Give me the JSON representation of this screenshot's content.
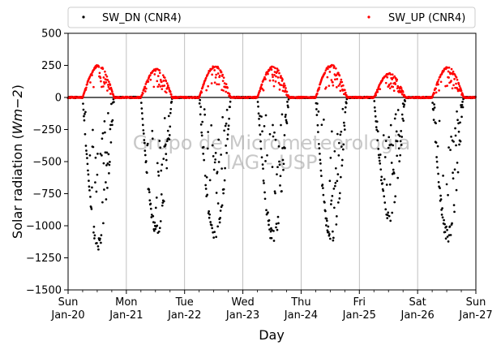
{
  "chart_data": {
    "type": "scatter",
    "title": "",
    "xlabel": "Day",
    "ylabel": "Solar radiation (Wm−2)",
    "ylabel_parts": {
      "prefix": "Solar radiation (",
      "math": "Wm−2",
      "suffix": ")"
    },
    "watermark": [
      "Grupo de Micrometeorologia",
      "IAG - USP"
    ],
    "xlim": [
      "2019-01-20",
      "2019-01-27"
    ],
    "ylim": [
      -1500,
      500
    ],
    "yticks": [
      500,
      250,
      0,
      -250,
      -500,
      -750,
      -1000,
      -1250,
      -1500
    ],
    "yticklabels": [
      "500",
      "250",
      "0",
      "−250",
      "−500",
      "−750",
      "−1000",
      "−1250",
      "−1500"
    ],
    "xticks": [
      {
        "day": 0,
        "weekday": "Sun",
        "date": "Jan-20"
      },
      {
        "day": 1,
        "weekday": "Mon",
        "date": "Jan-21"
      },
      {
        "day": 2,
        "weekday": "Tue",
        "date": "Jan-22"
      },
      {
        "day": 3,
        "weekday": "Wed",
        "date": "Jan-23"
      },
      {
        "day": 4,
        "weekday": "Thu",
        "date": "Jan-24"
      },
      {
        "day": 5,
        "weekday": "Fri",
        "date": "Jan-25"
      },
      {
        "day": 6,
        "weekday": "Sat",
        "date": "Jan-26"
      },
      {
        "day": 7,
        "weekday": "Sun",
        "date": "Jan-27"
      }
    ],
    "grid": "x-major",
    "zero_line": true,
    "legend_position": "above-top",
    "series": [
      {
        "name": "SW_DN (CNR4)",
        "color": "#000000",
        "marker": "point",
        "daily_peak": [
          -1220,
          -1090,
          -1160,
          -1140,
          -1160,
          -980,
          -1130
        ],
        "points": [
          [
            "2019-01-20 06:00",
            0
          ],
          [
            "2019-01-20 09:00",
            -650
          ],
          [
            "2019-01-20 12:00",
            -1200
          ],
          [
            "2019-01-20 15:00",
            -650
          ],
          [
            "2019-01-20 18:00",
            -30
          ],
          [
            "2019-01-21 12:00",
            -1080
          ],
          [
            "2019-01-22 12:00",
            -1150
          ],
          [
            "2019-01-23 12:00",
            -1130
          ],
          [
            "2019-01-24 12:00",
            -1150
          ],
          [
            "2019-01-25 12:00",
            -900
          ],
          [
            "2019-01-26 12:00",
            -1120
          ]
        ]
      },
      {
        "name": "SW_UP (CNR4)",
        "color": "#ff0000",
        "marker": "point",
        "daily_peak": [
          255,
          225,
          250,
          245,
          255,
          190,
          240
        ],
        "points": [
          [
            "2019-01-20 06:00",
            0
          ],
          [
            "2019-01-20 12:00",
            250
          ],
          [
            "2019-01-20 18:00",
            20
          ],
          [
            "2019-01-21 12:00",
            225
          ],
          [
            "2019-01-22 12:00",
            245
          ],
          [
            "2019-01-23 12:00",
            240
          ],
          [
            "2019-01-24 12:00",
            250
          ],
          [
            "2019-01-25 12:00",
            180
          ],
          [
            "2019-01-26 12:00",
            235
          ]
        ]
      }
    ]
  }
}
